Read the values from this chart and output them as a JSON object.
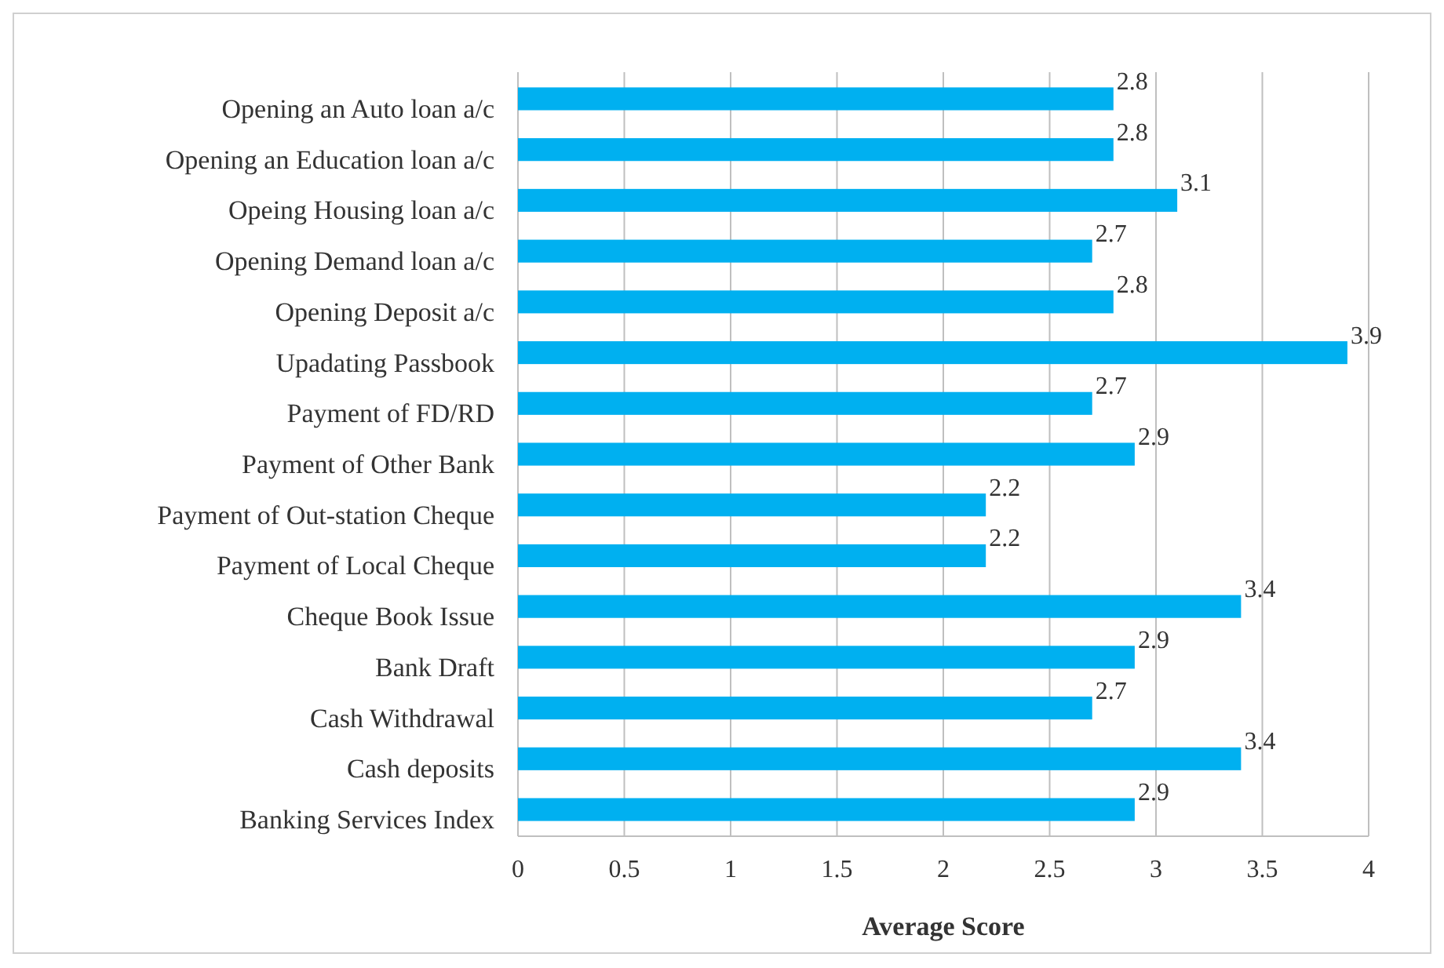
{
  "chart_data": {
    "type": "bar",
    "orientation": "horizontal",
    "xlabel": "Average Score",
    "categories": [
      "Opening an Auto loan a/c",
      "Opening an Education loan a/c",
      "Opeing Housing loan a/c",
      "Opening Demand loan a/c",
      "Opening Deposit a/c",
      "Upadating Passbook",
      "Payment of FD/RD",
      "Payment of Other Bank",
      "Payment of Out-station Cheque",
      "Payment of Local Cheque",
      "Cheque Book Issue",
      "Bank Draft",
      "Cash Withdrawal",
      "Cash deposits",
      "Banking Services Index"
    ],
    "values": [
      2.8,
      2.8,
      3.1,
      2.7,
      2.8,
      3.9,
      2.7,
      2.9,
      2.2,
      2.2,
      3.4,
      2.9,
      2.7,
      3.4,
      2.9
    ],
    "color": "#00b0f0",
    "xlim": [
      0,
      4
    ],
    "xticks": [
      0,
      0.5,
      1,
      1.5,
      2,
      2.5,
      3,
      3.5,
      4
    ],
    "grid": "x",
    "data_labels": true
  }
}
